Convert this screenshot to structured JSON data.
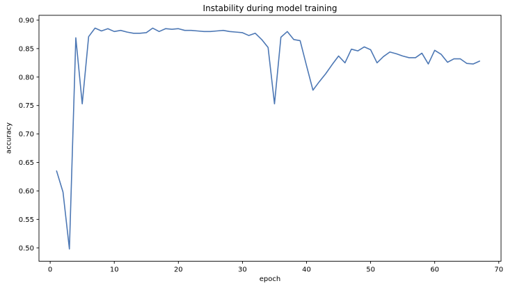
{
  "figure": {
    "background": "#ffffff"
  },
  "chart_data": {
    "type": "line",
    "title": "Instability during model training",
    "xlabel": "epoch",
    "ylabel": "accuracy",
    "legend": "none",
    "grid": false,
    "line_color": "#4c77b4",
    "axis_color": "#000000",
    "tick_label_color": "#000000",
    "xlim": [
      -1.75,
      70.35
    ],
    "ylim": [
      0.4765,
      0.9085
    ],
    "xticks": [
      0,
      10,
      20,
      30,
      40,
      50,
      60,
      70
    ],
    "yticks": [
      0.5,
      0.55,
      0.6,
      0.65,
      0.7,
      0.75,
      0.8,
      0.85,
      0.9
    ],
    "x": [
      1,
      2,
      3,
      4,
      5,
      6,
      7,
      8,
      9,
      10,
      11,
      12,
      13,
      14,
      15,
      16,
      17,
      18,
      19,
      20,
      21,
      22,
      23,
      24,
      25,
      26,
      27,
      28,
      29,
      30,
      31,
      32,
      33,
      34,
      35,
      36,
      37,
      38,
      39,
      40,
      41,
      42,
      43,
      44,
      45,
      46,
      47,
      48,
      49,
      50,
      51,
      52,
      53,
      54,
      55,
      56,
      57,
      58,
      59,
      60,
      61,
      62,
      63,
      64,
      65,
      66,
      67
    ],
    "values": [
      0.635,
      0.598,
      0.498,
      0.869,
      0.753,
      0.871,
      0.886,
      0.881,
      0.885,
      0.88,
      0.882,
      0.879,
      0.877,
      0.877,
      0.878,
      0.886,
      0.88,
      0.885,
      0.884,
      0.885,
      0.882,
      0.882,
      0.881,
      0.88,
      0.88,
      0.881,
      0.882,
      0.88,
      0.879,
      0.878,
      0.873,
      0.877,
      0.866,
      0.852,
      0.753,
      0.87,
      0.88,
      0.866,
      0.864,
      0.82,
      0.777,
      0.792,
      0.806,
      0.822,
      0.837,
      0.825,
      0.849,
      0.846,
      0.853,
      0.848,
      0.825,
      0.836,
      0.844,
      0.841,
      0.837,
      0.834,
      0.834,
      0.842,
      0.823,
      0.847,
      0.84,
      0.826,
      0.832,
      0.832,
      0.824,
      0.823,
      0.828
    ]
  }
}
